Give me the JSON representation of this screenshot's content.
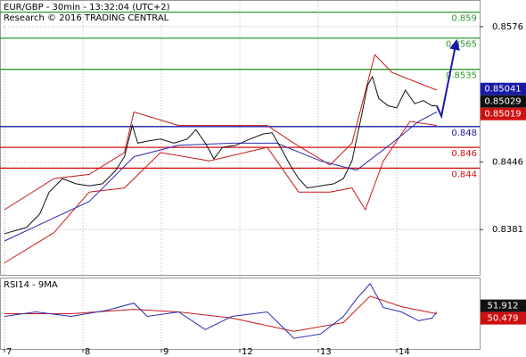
{
  "chart_data": [
    {
      "type": "line",
      "title": "EUR/GBP - 30min - 13:32:04 (UTC+2)",
      "subtitle": "Research © 2016 TRADING CENTRAL",
      "xlim": [
        -0.057,
        6.057
      ],
      "ylim": [
        0.83374,
        0.86008
      ],
      "yticks": [
        0.8576,
        0.8446,
        0.8381
      ],
      "grid": true,
      "levels": [
        {
          "value": 0.859,
          "color": "#2e9a2e"
        },
        {
          "value": 0.8565,
          "color": "#2e9a2e"
        },
        {
          "value": 0.8535,
          "color": "#2e9a2e"
        },
        {
          "value": 0.848,
          "color": "#1a1aa8"
        },
        {
          "value": 0.846,
          "color": "#d01010"
        },
        {
          "value": 0.844,
          "color": "#d01010"
        }
      ],
      "price_boxes": [
        {
          "value": 0.85041,
          "color": "#1a1aa8"
        },
        {
          "value": 0.85029,
          "color": "#111111"
        },
        {
          "value": 0.85019,
          "color": "#d01010"
        }
      ],
      "series": [
        {
          "color": "#c81818",
          "x": [
            0,
            0.63,
            1.08,
            1.53,
            1.65,
            2.22,
            2.78,
            3.35,
            3.69,
            4.15,
            4.43,
            4.72,
            4.94,
            5.51
          ],
          "values": [
            0.84,
            0.843,
            0.8434,
            0.8455,
            0.8494,
            0.8481,
            0.8481,
            0.8481,
            0.8464,
            0.8443,
            0.8464,
            0.8549,
            0.8532,
            0.8515
          ]
        },
        {
          "color": "#c81818",
          "x": [
            0,
            0.63,
            1.08,
            1.53,
            1.99,
            2.61,
            3.35,
            3.75,
            4.15,
            4.43,
            4.6,
            4.83,
            5.17,
            5.51
          ],
          "values": [
            0.8349,
            0.8378,
            0.8417,
            0.8421,
            0.8455,
            0.8447,
            0.846,
            0.8417,
            0.8417,
            0.8421,
            0.84,
            0.8447,
            0.8485,
            0.8481
          ]
        },
        {
          "color": "#2a2ab0",
          "x": [
            0,
            1.08,
            1.65,
            2.22,
            2.9,
            3.47,
            4.03,
            4.49,
            4.94,
            5.28,
            5.51
          ],
          "values": [
            0.837,
            0.8408,
            0.8451,
            0.8462,
            0.8464,
            0.8464,
            0.8447,
            0.8438,
            0.8464,
            0.8485,
            0.8494
          ]
        },
        {
          "color": "#111111",
          "x": [
            0,
            0.28,
            0.45,
            0.57,
            0.74,
            0.91,
            1.08,
            1.25,
            1.42,
            1.53,
            1.63,
            1.7,
            1.82,
            1.99,
            2.16,
            2.33,
            2.44,
            2.56,
            2.67,
            2.78,
            2.95,
            3.13,
            3.3,
            3.41,
            3.52,
            3.64,
            3.75,
            3.86,
            4.03,
            4.2,
            4.32,
            4.43,
            4.55,
            4.63,
            4.69,
            4.77,
            4.89,
            5.0,
            5.11,
            5.23,
            5.34,
            5.45,
            5.51
          ],
          "values": [
            0.8377,
            0.8383,
            0.8396,
            0.8417,
            0.843,
            0.8425,
            0.8423,
            0.8425,
            0.8438,
            0.8451,
            0.8481,
            0.8464,
            0.8466,
            0.8468,
            0.8464,
            0.8468,
            0.8477,
            0.8464,
            0.8449,
            0.846,
            0.8462,
            0.8468,
            0.8473,
            0.8474,
            0.846,
            0.8443,
            0.843,
            0.8421,
            0.8423,
            0.8425,
            0.843,
            0.8447,
            0.849,
            0.852,
            0.8528,
            0.8507,
            0.85,
            0.8498,
            0.8515,
            0.8502,
            0.8505,
            0.85,
            0.85
          ]
        },
        {
          "color": "#1a1aa8",
          "x": [
            5.51,
            5.57,
            5.76
          ],
          "values": [
            0.85,
            0.849,
            0.8562
          ],
          "arrow": true
        }
      ]
    },
    {
      "type": "line",
      "title": "RSI14 - 9MA",
      "xlim": [
        -0.057,
        6.057
      ],
      "ylim": [
        10,
        90
      ],
      "xticks": [
        {
          "value": 0,
          "label": "7"
        },
        {
          "value": 1,
          "label": "8"
        },
        {
          "value": 2,
          "label": "9"
        },
        {
          "value": 3,
          "label": "12"
        },
        {
          "value": 4,
          "label": "13"
        },
        {
          "value": 5,
          "label": "14"
        }
      ],
      "price_boxes": [
        {
          "value": 51.912,
          "color": "#111111"
        },
        {
          "value": 50.479,
          "color": "#d01010"
        }
      ],
      "series": [
        {
          "color": "#c81818",
          "x": [
            0,
            0.85,
            1.65,
            2.22,
            2.9,
            3.69,
            4.32,
            4.66,
            5.06,
            5.51
          ],
          "values": [
            50,
            50,
            55,
            52,
            45,
            30,
            40,
            70,
            58,
            50
          ]
        },
        {
          "color": "#2a2ab0",
          "x": [
            0,
            0.4,
            0.85,
            1.31,
            1.65,
            1.82,
            2.22,
            2.56,
            2.9,
            3.35,
            3.69,
            4.03,
            4.32,
            4.49,
            4.66,
            4.83,
            5.06,
            5.28,
            5.45,
            5.51
          ],
          "values": [
            47,
            52,
            47,
            54,
            62,
            47,
            52,
            32,
            47,
            52,
            22,
            27,
            47,
            67,
            84,
            57,
            52,
            42,
            45,
            52
          ]
        }
      ]
    }
  ]
}
